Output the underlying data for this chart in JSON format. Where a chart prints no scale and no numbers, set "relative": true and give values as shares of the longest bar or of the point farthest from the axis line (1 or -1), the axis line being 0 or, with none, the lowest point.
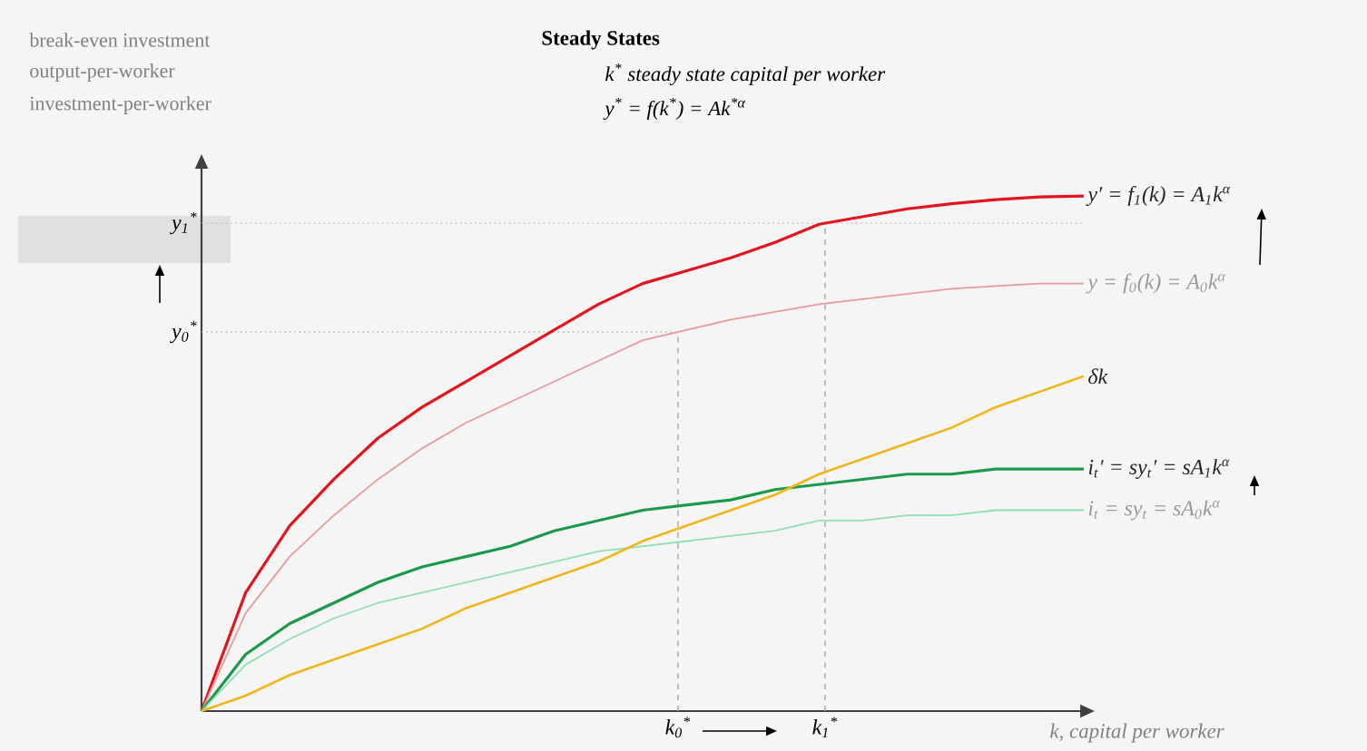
{
  "chart_data": {
    "type": "line",
    "title": "Steady States",
    "relative": true,
    "xlabel": "k, capital per worker",
    "categories": [
      null,
      null,
      null,
      null,
      null,
      null,
      null,
      null,
      null,
      null,
      null,
      null,
      null,
      null,
      null,
      null,
      null,
      null,
      null,
      null,
      null
    ],
    "series": [
      {
        "name": "y′ = f$_{1}$(k) = A$_{1}$k$^{α}$",
        "color": "#e3141c",
        "values": [
          0,
          0.23,
          0.36,
          0.45,
          0.53,
          0.59,
          0.64,
          0.69,
          0.74,
          0.79,
          0.83,
          0.855,
          0.88,
          0.91,
          0.945,
          0.96,
          0.975,
          0.985,
          0.993,
          0.998,
          1.0
        ]
      },
      {
        "name": "y = f$_{0}$(k) = A$_{0}$k$^{α}$",
        "color": "#e89a9c",
        "values": [
          0,
          0.19,
          0.3,
          0.38,
          0.45,
          0.51,
          0.56,
          0.6,
          0.64,
          0.68,
          0.72,
          0.74,
          0.76,
          0.775,
          0.79,
          0.8,
          0.81,
          0.82,
          0.825,
          0.83,
          0.83
        ]
      },
      {
        "name": "i$_{t}$′ = sy$_{t}$′ = sA$_{1}$k$^{α}$",
        "color": "#1a9a48",
        "values": [
          0,
          0.11,
          0.17,
          0.21,
          0.25,
          0.28,
          0.3,
          0.32,
          0.35,
          0.37,
          0.39,
          0.4,
          0.41,
          0.43,
          0.44,
          0.45,
          0.46,
          0.46,
          0.47,
          0.47,
          0.47
        ]
      },
      {
        "name": "i$_{t}$ = sy$_{t}$ = sA$_{0}$k$^{α}$",
        "color": "#8fe0b2",
        "values": [
          0,
          0.09,
          0.14,
          0.18,
          0.21,
          0.23,
          0.25,
          0.27,
          0.29,
          0.31,
          0.32,
          0.33,
          0.34,
          0.35,
          0.37,
          0.37,
          0.38,
          0.38,
          0.39,
          0.39,
          0.39
        ]
      },
      {
        "name": "δk",
        "color": "#f0b619",
        "values": [
          0,
          0.03,
          0.07,
          0.1,
          0.13,
          0.16,
          0.2,
          0.23,
          0.26,
          0.29,
          0.33,
          0.36,
          0.39,
          0.42,
          0.46,
          0.49,
          0.52,
          0.55,
          0.59,
          0.62,
          0.65
        ]
      }
    ],
    "ref_lines": [
      {
        "axis": "y",
        "value": 0.736,
        "label": "y$_{0}$$^{*}$",
        "color": "#b0b0b0",
        "line_style": "dotted"
      },
      {
        "axis": "y",
        "value": 0.947,
        "label": "y$_{1}$$^{*}$",
        "color": "#b0b0b0",
        "line_style": "dotted"
      }
    ],
    "annotations": [
      "break-even investment",
      "output-per-worker",
      "investment-per-worker",
      "k$^{*}$   steady state capital per worker",
      "y$^{*}$ = f(k$^{*}$) = Ak$^{*α}$",
      "k$_{0}$$^{*}$",
      "k$_{1}$$^{*}$"
    ]
  }
}
